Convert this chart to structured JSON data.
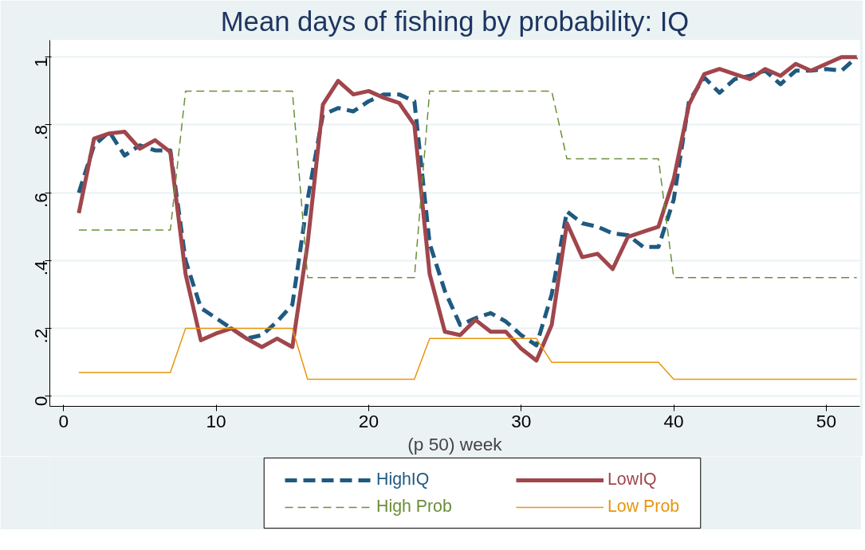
{
  "chart_data": {
    "type": "line",
    "title": "Mean days of fishing by probability: IQ",
    "xlabel": "(p 50) week",
    "x": [
      1,
      2,
      3,
      4,
      5,
      6,
      7,
      8,
      9,
      10,
      11,
      12,
      13,
      14,
      15,
      16,
      17,
      18,
      19,
      20,
      21,
      22,
      23,
      24,
      25,
      26,
      27,
      28,
      29,
      30,
      31,
      32,
      33,
      34,
      35,
      36,
      37,
      38,
      39,
      40,
      41,
      42,
      43,
      44,
      45,
      46,
      47,
      48,
      49,
      50,
      51,
      52
    ],
    "series": [
      {
        "name": "HighIQ",
        "color": "#1f5a80",
        "line_style": "dashed",
        "values": [
          0.6,
          0.74,
          0.78,
          0.71,
          0.74,
          0.725,
          0.725,
          0.4,
          0.26,
          0.23,
          0.2,
          0.17,
          0.18,
          0.22,
          0.27,
          0.58,
          0.83,
          0.85,
          0.84,
          0.87,
          0.89,
          0.89,
          0.87,
          0.45,
          0.31,
          0.21,
          0.23,
          0.245,
          0.22,
          0.18,
          0.15,
          0.3,
          0.545,
          0.51,
          0.5,
          0.48,
          0.475,
          0.44,
          0.44,
          0.58,
          0.87,
          0.94,
          0.895,
          0.935,
          0.945,
          0.96,
          0.92,
          0.96,
          0.96,
          0.965,
          0.96,
          1.0
        ]
      },
      {
        "name": "LowIQ",
        "color": "#a0464c",
        "line_style": "solid",
        "values": [
          0.54,
          0.76,
          0.775,
          0.78,
          0.73,
          0.755,
          0.72,
          0.36,
          0.165,
          0.185,
          0.2,
          0.17,
          0.145,
          0.17,
          0.145,
          0.45,
          0.86,
          0.93,
          0.89,
          0.9,
          0.88,
          0.865,
          0.8,
          0.36,
          0.19,
          0.18,
          0.225,
          0.19,
          0.19,
          0.14,
          0.105,
          0.21,
          0.51,
          0.41,
          0.42,
          0.375,
          0.47,
          0.485,
          0.5,
          0.64,
          0.86,
          0.95,
          0.965,
          0.95,
          0.935,
          0.965,
          0.945,
          0.98,
          0.96,
          0.98,
          1.0,
          1.0
        ]
      },
      {
        "name": "High Prob",
        "color": "#6b8e3a",
        "line_style": "dashed",
        "values": [
          0.49,
          0.49,
          0.49,
          0.49,
          0.49,
          0.49,
          0.49,
          0.9,
          0.9,
          0.9,
          0.9,
          0.9,
          0.9,
          0.9,
          0.9,
          0.35,
          0.35,
          0.35,
          0.35,
          0.35,
          0.35,
          0.35,
          0.35,
          0.9,
          0.9,
          0.9,
          0.9,
          0.9,
          0.9,
          0.9,
          0.9,
          0.9,
          0.7,
          0.7,
          0.7,
          0.7,
          0.7,
          0.7,
          0.7,
          0.35,
          0.35,
          0.35,
          0.35,
          0.35,
          0.35,
          0.35,
          0.35,
          0.35,
          0.35,
          0.35,
          0.35,
          0.35
        ]
      },
      {
        "name": "Low Prob",
        "color": "#e8960c",
        "line_style": "solid",
        "values": [
          0.07,
          0.07,
          0.07,
          0.07,
          0.07,
          0.07,
          0.07,
          0.2,
          0.2,
          0.2,
          0.2,
          0.2,
          0.2,
          0.2,
          0.2,
          0.05,
          0.05,
          0.05,
          0.05,
          0.05,
          0.05,
          0.05,
          0.05,
          0.17,
          0.17,
          0.17,
          0.17,
          0.17,
          0.17,
          0.17,
          0.17,
          0.1,
          0.1,
          0.1,
          0.1,
          0.1,
          0.1,
          0.1,
          0.1,
          0.05,
          0.05,
          0.05,
          0.05,
          0.05,
          0.05,
          0.05,
          0.05,
          0.05,
          0.05,
          0.05,
          0.05,
          0.05
        ]
      }
    ],
    "xlim": [
      -0.9,
      52.2
    ],
    "ylim": [
      -0.03,
      1.05
    ],
    "xticks": [
      0,
      10,
      20,
      30,
      40,
      50
    ],
    "yticks": [
      {
        "value": 0,
        "label": "0"
      },
      {
        "value": 0.2,
        "label": ".2"
      },
      {
        "value": 0.4,
        "label": ".4"
      },
      {
        "value": 0.6,
        "label": ".6"
      },
      {
        "value": 0.8,
        "label": ".8"
      },
      {
        "value": 1,
        "label": "1"
      }
    ],
    "grid": "y",
    "legend": "bottom",
    "marker": "none"
  }
}
